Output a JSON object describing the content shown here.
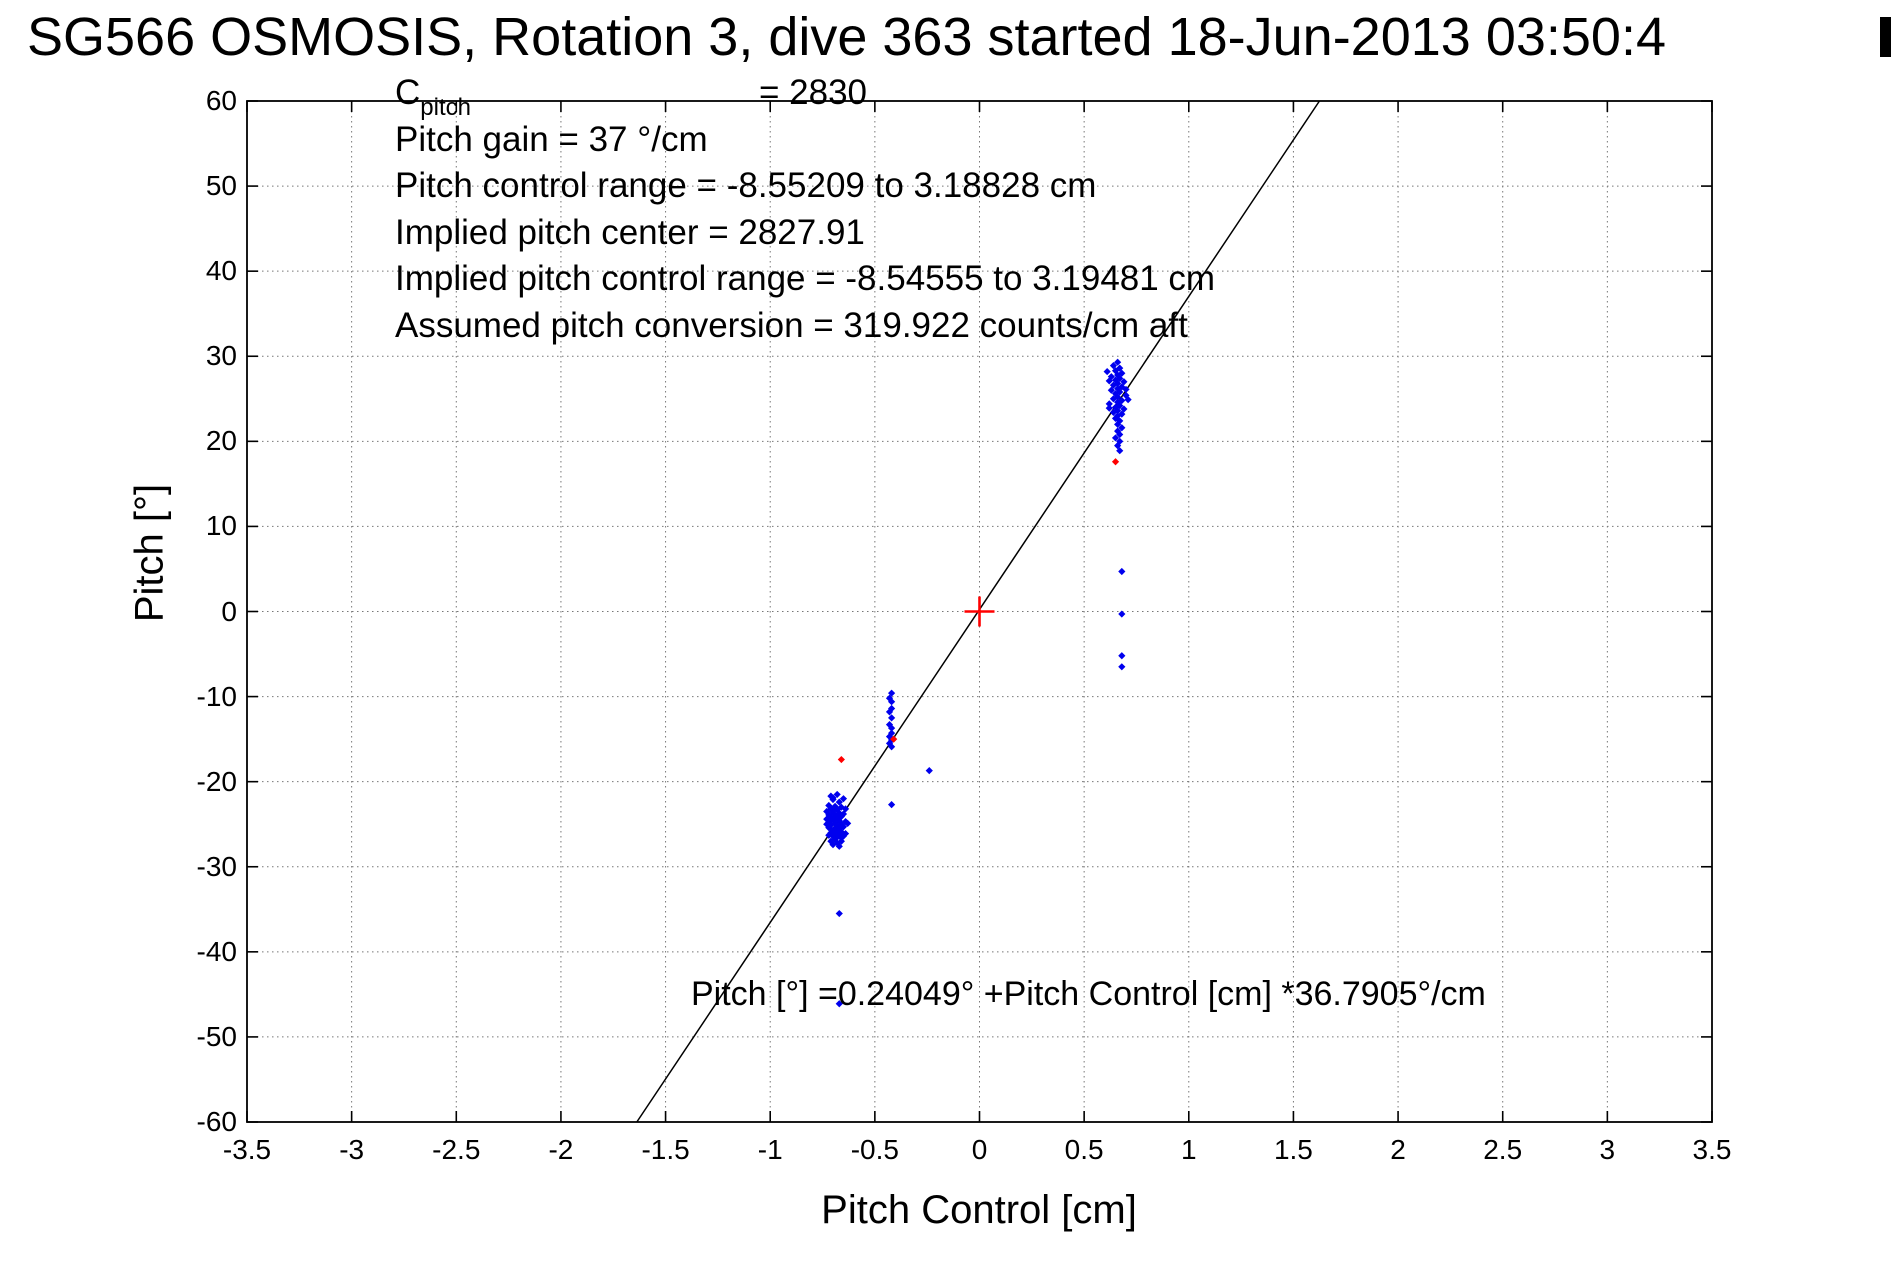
{
  "chart_data": {
    "type": "scatter",
    "title": "SG566 OSMOSIS, Rotation 3, dive 363 started 18-Jun-2013 03:50:4",
    "xlabel": "Pitch Control [cm]",
    "ylabel": "Pitch [°]",
    "xlim": [
      -3.5,
      3.5
    ],
    "ylim": [
      -60,
      60
    ],
    "x_ticks": [
      "-3.5",
      "-3",
      "-2.5",
      "-2",
      "-1.5",
      "-1",
      "-0.5",
      "0",
      "0.5",
      "1",
      "1.5",
      "2",
      "2.5",
      "3",
      "3.5"
    ],
    "y_ticks": [
      "60",
      "50",
      "40",
      "30",
      "20",
      "10",
      "0",
      "-10",
      "-20",
      "-30",
      "-40",
      "-50",
      "-60"
    ],
    "grid": "dotted",
    "legend": "none",
    "colors": {
      "points": "#0000ee",
      "flagged": "#ff0000",
      "fit_line": "#000000",
      "grid": "#777777",
      "axis": "#000000"
    },
    "fit": {
      "intercept_deg": 0.24049,
      "slope_deg_per_cm": 36.7905
    },
    "fit_label": "Pitch [°] =0.24049° +Pitch Control [cm] *36.7905°/cm",
    "annotations": {
      "cpitch_base": "C",
      "cpitch_sub": "pitch",
      "cpitch_rest": "= 2830",
      "lines": [
        "Pitch gain = 37 °/cm",
        "Pitch control range = -8.55209 to 3.18828 cm",
        "Implied pitch center = 2827.91",
        "Implied pitch control range = -8.54555 to 3.19481 cm",
        "Assumed pitch conversion = 319.922 counts/cm aft"
      ]
    },
    "origin_marker": {
      "x": 0,
      "y": 0,
      "marker": "plus",
      "color": "#ff0000"
    },
    "series": [
      {
        "name": "pitch-observations",
        "marker": "diamond",
        "color": "#0000ee",
        "points": [
          [
            -0.71,
            -21.7
          ],
          [
            -0.68,
            -21.5
          ],
          [
            -0.7,
            -22.1
          ],
          [
            -0.67,
            -22.4
          ],
          [
            -0.72,
            -22.8
          ],
          [
            -0.69,
            -22.9
          ],
          [
            -0.66,
            -23.0
          ],
          [
            -0.71,
            -23.2
          ],
          [
            -0.68,
            -23.3
          ],
          [
            -0.73,
            -23.5
          ],
          [
            -0.7,
            -23.6
          ],
          [
            -0.67,
            -23.7
          ],
          [
            -0.65,
            -23.8
          ],
          [
            -0.72,
            -23.9
          ],
          [
            -0.69,
            -24.0
          ],
          [
            -0.66,
            -24.1
          ],
          [
            -0.71,
            -24.2
          ],
          [
            -0.68,
            -24.3
          ],
          [
            -0.73,
            -24.4
          ],
          [
            -0.7,
            -24.5
          ],
          [
            -0.67,
            -24.6
          ],
          [
            -0.64,
            -24.7
          ],
          [
            -0.72,
            -24.8
          ],
          [
            -0.69,
            -24.9
          ],
          [
            -0.66,
            -25.0
          ],
          [
            -0.71,
            -25.1
          ],
          [
            -0.68,
            -25.2
          ],
          [
            -0.65,
            -25.3
          ],
          [
            -0.72,
            -25.4
          ],
          [
            -0.69,
            -25.5
          ],
          [
            -0.67,
            -25.6
          ],
          [
            -0.7,
            -25.7
          ],
          [
            -0.68,
            -25.8
          ],
          [
            -0.66,
            -25.9
          ],
          [
            -0.71,
            -26.0
          ],
          [
            -0.69,
            -26.1
          ],
          [
            -0.67,
            -26.2
          ],
          [
            -0.72,
            -26.3
          ],
          [
            -0.7,
            -26.4
          ],
          [
            -0.68,
            -26.5
          ],
          [
            -0.66,
            -26.6
          ],
          [
            -0.69,
            -26.8
          ],
          [
            -0.71,
            -27.0
          ],
          [
            -0.68,
            -27.2
          ],
          [
            -0.7,
            -27.4
          ],
          [
            -0.67,
            -27.6
          ],
          [
            -0.65,
            -22.0
          ],
          [
            -0.64,
            -23.2
          ],
          [
            -0.63,
            -24.9
          ],
          [
            -0.64,
            -26.1
          ],
          [
            -0.66,
            -27.0
          ],
          [
            -0.73,
            -25.0
          ],
          [
            -0.7,
            -21.9
          ],
          [
            -0.65,
            -26.4
          ],
          [
            -0.69,
            -23.1
          ],
          [
            -0.67,
            -35.5
          ],
          [
            -0.67,
            -46.1
          ],
          [
            -0.42,
            -9.6
          ],
          [
            -0.43,
            -10.2
          ],
          [
            -0.42,
            -10.6
          ],
          [
            -0.42,
            -11.4
          ],
          [
            -0.43,
            -11.8
          ],
          [
            -0.42,
            -12.5
          ],
          [
            -0.43,
            -13.3
          ],
          [
            -0.42,
            -13.7
          ],
          [
            -0.42,
            -14.3
          ],
          [
            -0.43,
            -14.7
          ],
          [
            -0.42,
            -15.1
          ],
          [
            -0.43,
            -15.5
          ],
          [
            -0.42,
            -15.9
          ],
          [
            -0.42,
            -22.7
          ],
          [
            -0.24,
            -18.7
          ],
          [
            0.66,
            29.3
          ],
          [
            0.64,
            28.9
          ],
          [
            0.67,
            28.6
          ],
          [
            0.65,
            28.3
          ],
          [
            0.68,
            28.0
          ],
          [
            0.66,
            27.8
          ],
          [
            0.63,
            27.6
          ],
          [
            0.67,
            27.4
          ],
          [
            0.65,
            27.2
          ],
          [
            0.69,
            27.0
          ],
          [
            0.66,
            26.8
          ],
          [
            0.64,
            26.6
          ],
          [
            0.68,
            26.4
          ],
          [
            0.66,
            26.2
          ],
          [
            0.63,
            26.0
          ],
          [
            0.67,
            25.8
          ],
          [
            0.65,
            25.6
          ],
          [
            0.7,
            25.4
          ],
          [
            0.66,
            25.2
          ],
          [
            0.64,
            25.0
          ],
          [
            0.68,
            24.8
          ],
          [
            0.66,
            24.6
          ],
          [
            0.62,
            24.4
          ],
          [
            0.67,
            24.2
          ],
          [
            0.65,
            24.0
          ],
          [
            0.69,
            23.8
          ],
          [
            0.66,
            23.6
          ],
          [
            0.64,
            23.4
          ],
          [
            0.68,
            23.2
          ],
          [
            0.66,
            23.0
          ],
          [
            0.65,
            22.7
          ],
          [
            0.67,
            22.4
          ],
          [
            0.66,
            22.0
          ],
          [
            0.68,
            21.6
          ],
          [
            0.66,
            21.2
          ],
          [
            0.67,
            20.8
          ],
          [
            0.65,
            20.4
          ],
          [
            0.67,
            20.0
          ],
          [
            0.66,
            19.5
          ],
          [
            0.67,
            18.9
          ],
          [
            0.61,
            28.2
          ],
          [
            0.62,
            27.1
          ],
          [
            0.7,
            26.1
          ],
          [
            0.71,
            24.9
          ],
          [
            0.62,
            23.9
          ],
          [
            0.68,
            4.7
          ],
          [
            0.68,
            -0.3
          ],
          [
            0.68,
            -5.2
          ],
          [
            0.68,
            -6.5
          ]
        ]
      },
      {
        "name": "flagged-points",
        "marker": "diamond",
        "color": "#ff0000",
        "points": [
          [
            -0.66,
            -17.4
          ],
          [
            -0.41,
            -15.0
          ],
          [
            0.65,
            17.6
          ]
        ]
      }
    ]
  }
}
